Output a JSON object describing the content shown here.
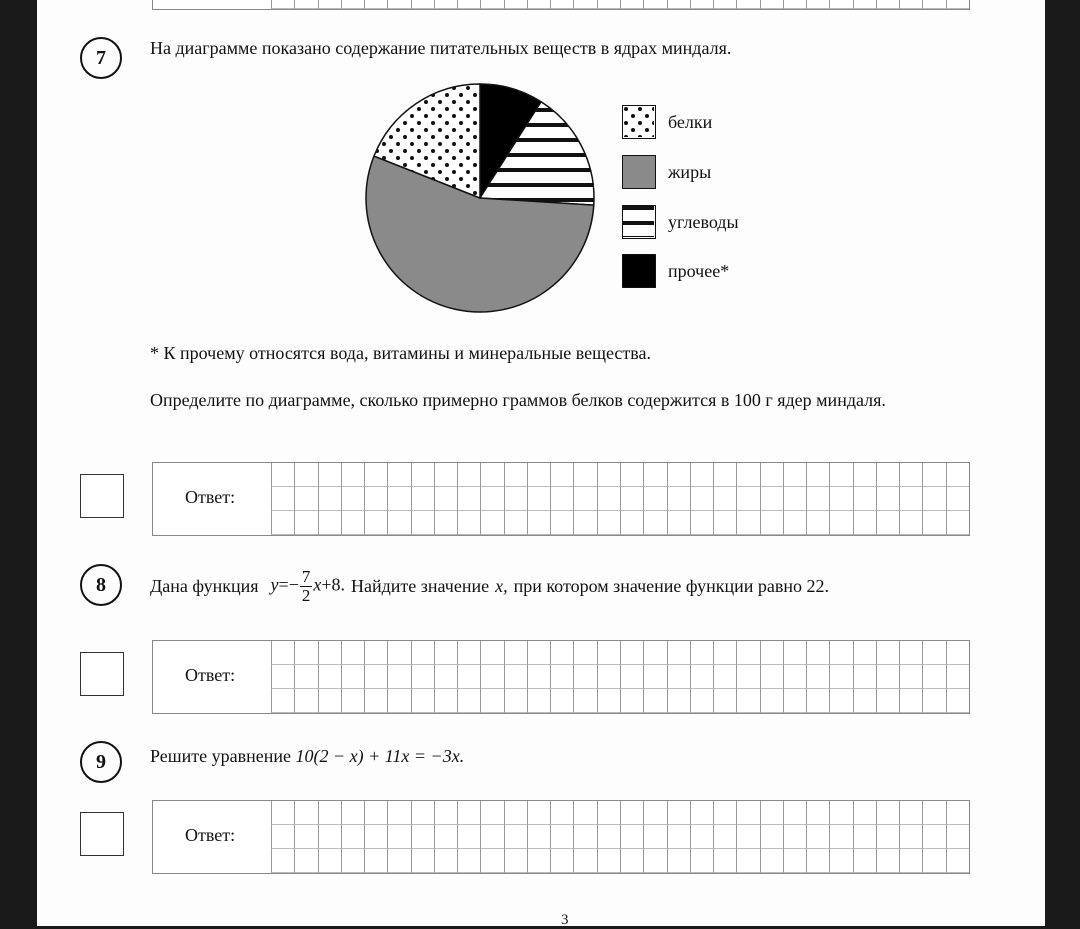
{
  "tasks": [
    {
      "number": "7",
      "text": "На диаграмме показано содержание питательных веществ в ядрах миндаля.",
      "footnote": "* К прочему относятся вода, витамины и минеральные вещества.",
      "question": "Определите по диаграмме, сколько примерно граммов белков содержится в 100 г ядер миндаля."
    },
    {
      "number": "8",
      "text_before": "Дана функция",
      "formula": {
        "y": "y",
        "eq": "=",
        "minus": "−",
        "num": "7",
        "den": "2",
        "rest_x": "x",
        "rest": "+8."
      },
      "text_after": "Найдите значение",
      "var": "x,",
      "text_end": "при котором значение функции равно 22."
    },
    {
      "number": "9",
      "text": "Решите уравнение",
      "equation": "10(2 − x) + 11x = −3x."
    }
  ],
  "answer_label": "Ответ:",
  "page_number": "3",
  "chart_data": {
    "type": "pie",
    "title": "",
    "slices": [
      {
        "label": "прочее*",
        "value": 9,
        "pattern": "solid-black",
        "color": "#000000"
      },
      {
        "label": "углеводы",
        "value": 17,
        "pattern": "horizontal-stripes",
        "color": "#ffffff"
      },
      {
        "label": "жиры",
        "value": 55,
        "pattern": "solid-gray",
        "color": "#8a8a8a"
      },
      {
        "label": "белки",
        "value": 19,
        "pattern": "dots",
        "color": "#ffffff"
      }
    ],
    "legend": [
      "белки",
      "жиры",
      "углеводы",
      "прочее*"
    ],
    "legend_position": "right"
  }
}
